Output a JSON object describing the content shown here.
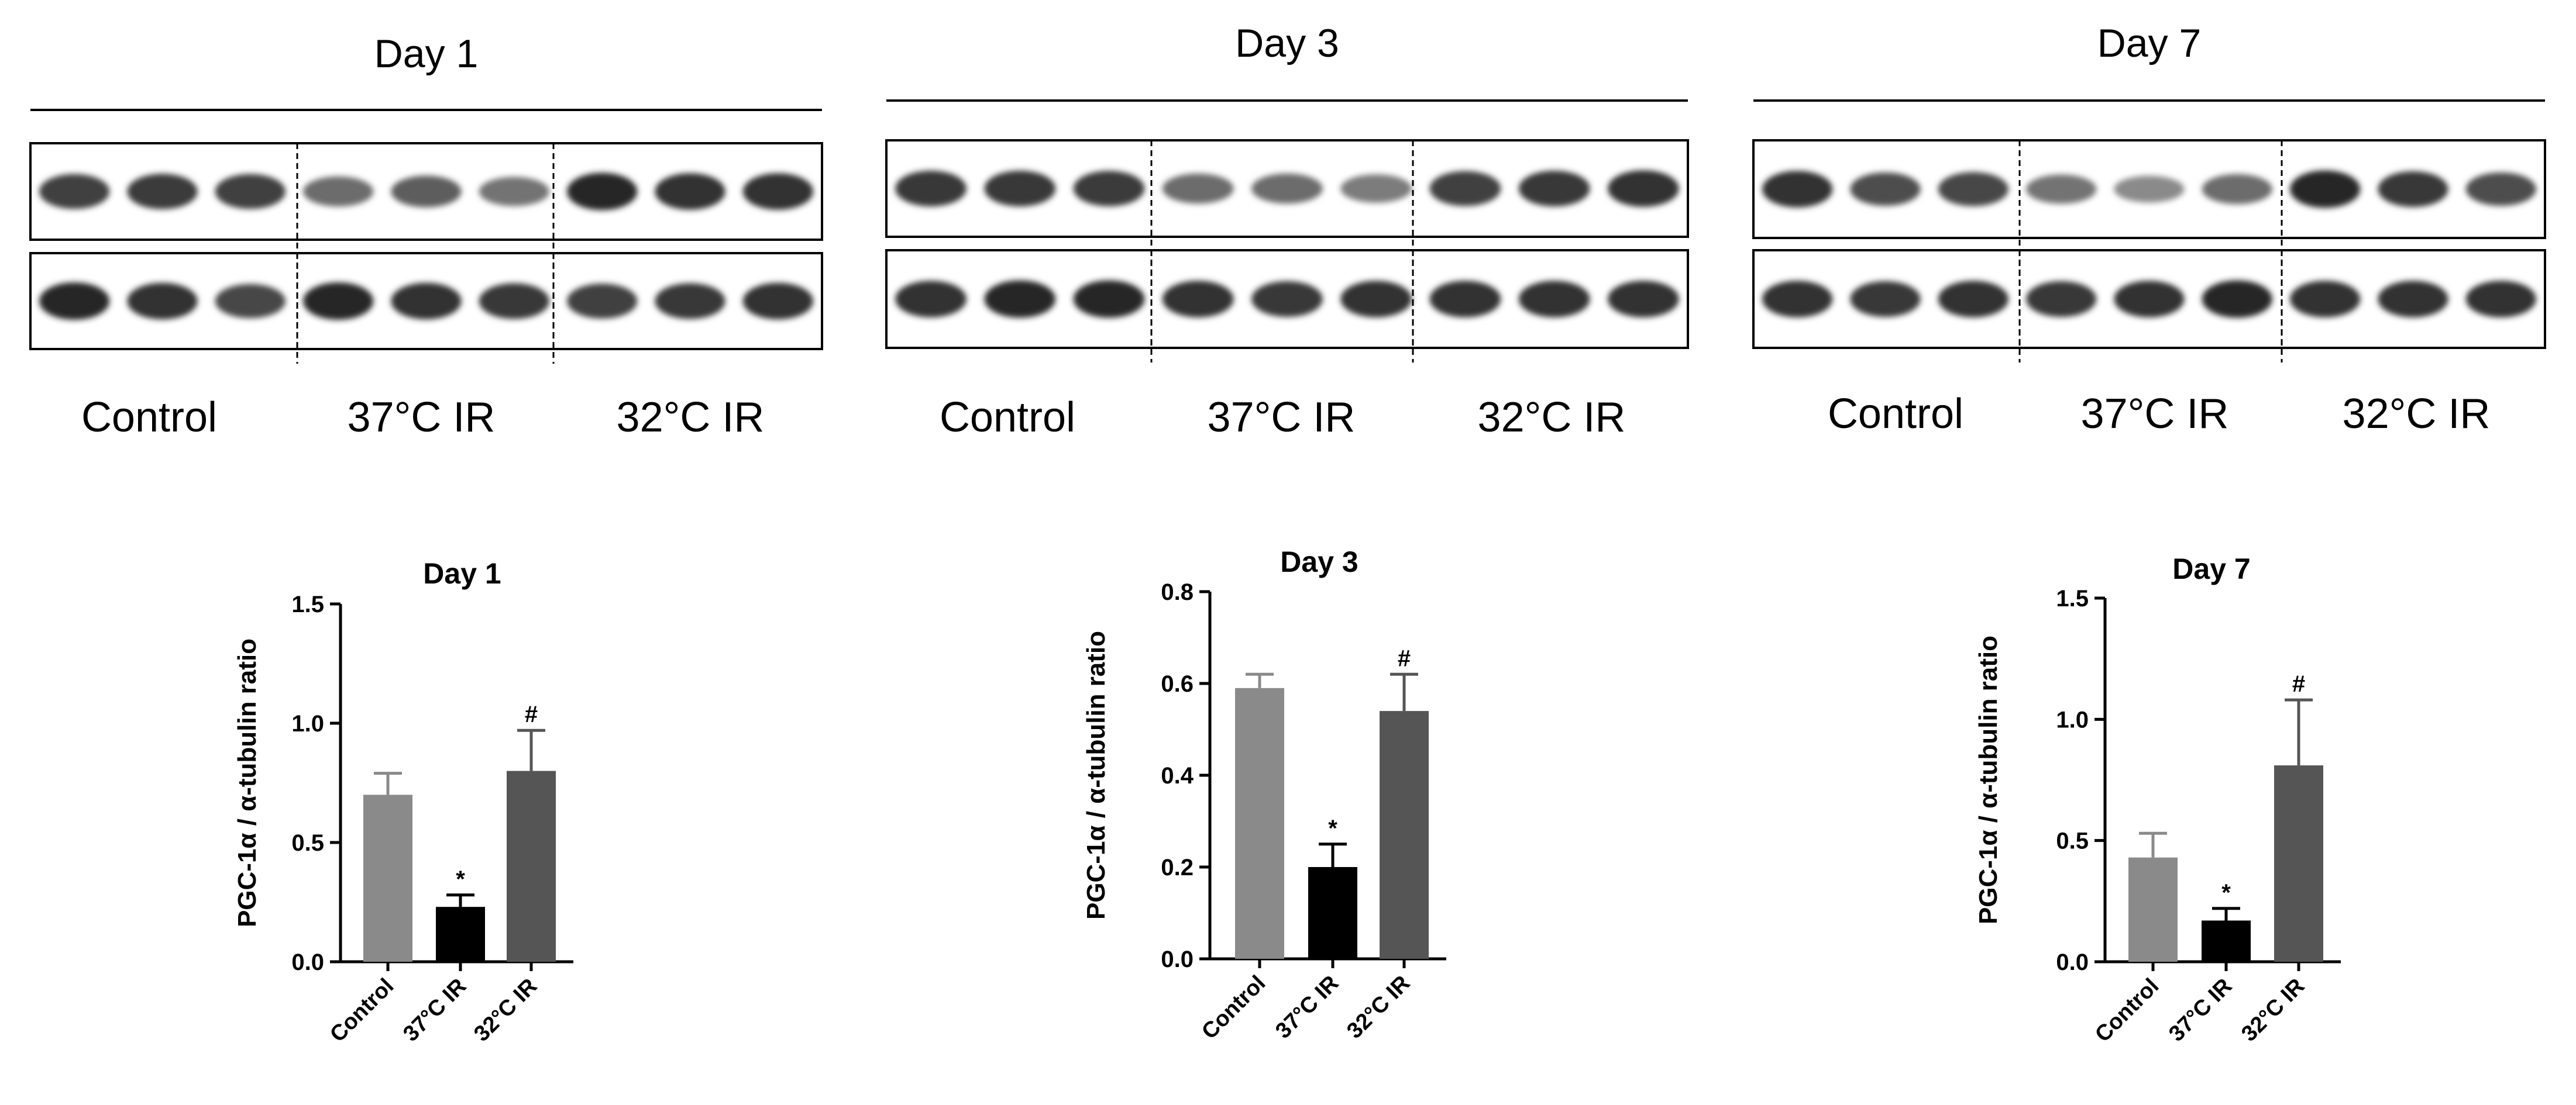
{
  "blots": [
    {
      "title": "Day 1",
      "groups": [
        "Control",
        "37°C IR",
        "32°C IR"
      ],
      "top_band_intensity": [
        0.85,
        0.88,
        0.85,
        0.55,
        0.65,
        0.5,
        1.0,
        0.95,
        0.95
      ],
      "bottom_band_intensity": [
        1.0,
        0.95,
        0.8,
        1.0,
        0.95,
        0.9,
        0.85,
        0.9,
        0.95
      ]
    },
    {
      "title": "Day 3",
      "groups": [
        "Control",
        "37°C IR",
        "32°C IR"
      ],
      "top_band_intensity": [
        0.9,
        0.9,
        0.88,
        0.55,
        0.55,
        0.45,
        0.85,
        0.9,
        0.95
      ],
      "bottom_band_intensity": [
        0.95,
        1.0,
        1.0,
        0.95,
        0.9,
        0.95,
        0.95,
        0.95,
        0.95
      ]
    },
    {
      "title": "Day 7",
      "groups": [
        "Control",
        "37°C IR",
        "32°C IR"
      ],
      "top_band_intensity": [
        0.95,
        0.75,
        0.8,
        0.5,
        0.35,
        0.55,
        1.0,
        0.9,
        0.75
      ],
      "bottom_band_intensity": [
        0.95,
        0.9,
        0.95,
        0.9,
        0.95,
        1.0,
        0.95,
        0.95,
        0.95
      ]
    }
  ],
  "chart_data": [
    {
      "type": "bar",
      "title": "Day 1",
      "ylabel": "PGC-1α / α-tubulin ratio",
      "categories": [
        "Control",
        "37°C IR",
        "32°C IR"
      ],
      "values": [
        0.7,
        0.23,
        0.8
      ],
      "errors": [
        0.09,
        0.05,
        0.17
      ],
      "colors": [
        "#8a8a8a",
        "#000000",
        "#555555"
      ],
      "annotations": [
        "",
        "*",
        "#"
      ],
      "ylim": [
        0,
        1.5
      ],
      "yticks": [
        0.0,
        0.5,
        1.0,
        1.5
      ],
      "ytick_labels": [
        "0.0",
        "0.5",
        "1.0",
        "1.5"
      ]
    },
    {
      "type": "bar",
      "title": "Day 3",
      "ylabel": "PGC-1α / α-tubulin ratio",
      "categories": [
        "Control",
        "37°C IR",
        "32°C IR"
      ],
      "values": [
        0.59,
        0.2,
        0.54
      ],
      "errors": [
        0.03,
        0.05,
        0.08
      ],
      "colors": [
        "#8a8a8a",
        "#000000",
        "#555555"
      ],
      "annotations": [
        "",
        "*",
        "#"
      ],
      "ylim": [
        0,
        0.8
      ],
      "yticks": [
        0.0,
        0.2,
        0.4,
        0.6,
        0.8
      ],
      "ytick_labels": [
        "0.0",
        "0.2",
        "0.4",
        "0.6",
        "0.8"
      ]
    },
    {
      "type": "bar",
      "title": "Day 7",
      "ylabel": "PGC-1α / α-tubulin ratio",
      "categories": [
        "Control",
        "37°C IR",
        "32°C IR"
      ],
      "values": [
        0.43,
        0.17,
        0.81
      ],
      "errors": [
        0.1,
        0.05,
        0.27
      ],
      "colors": [
        "#8a8a8a",
        "#000000",
        "#555555"
      ],
      "annotations": [
        "",
        "*",
        "#"
      ],
      "ylim": [
        0,
        1.5
      ],
      "yticks": [
        0.0,
        0.5,
        1.0,
        1.5
      ],
      "ytick_labels": [
        "0.0",
        "0.5",
        "1.0",
        "1.5"
      ]
    }
  ]
}
